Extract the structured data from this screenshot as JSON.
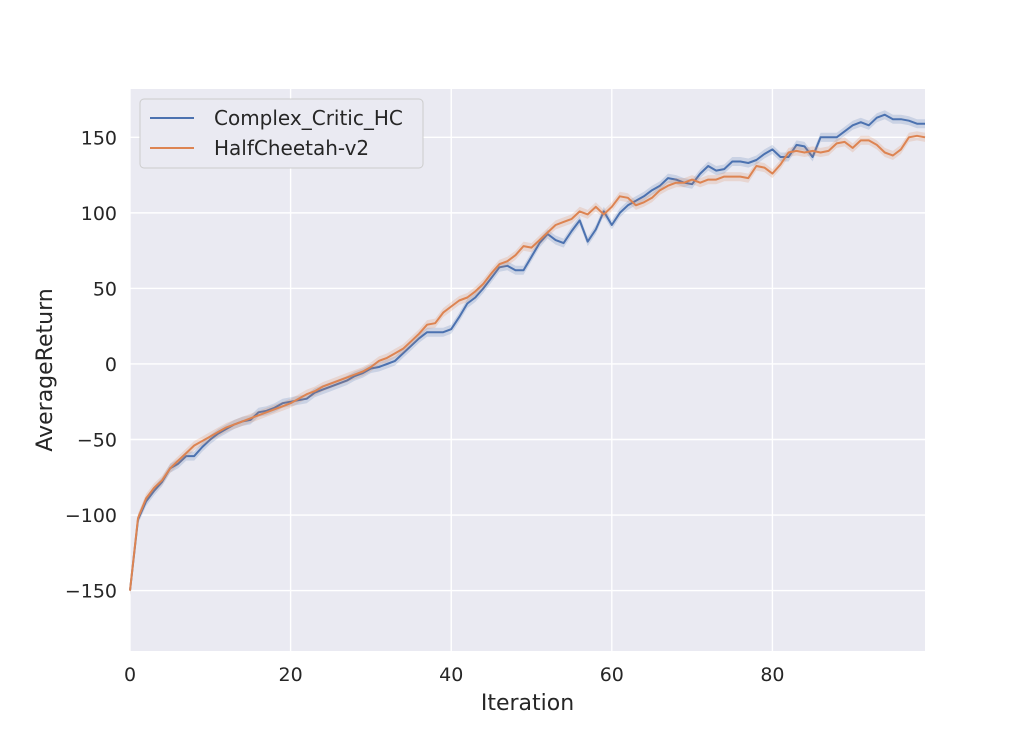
{
  "chart_data": {
    "type": "line",
    "title": "",
    "xlabel": "Iteration",
    "ylabel": "AverageReturn",
    "xlim": [
      0,
      99
    ],
    "ylim": [
      -190,
      182
    ],
    "xticks": [
      0,
      20,
      40,
      60,
      80
    ],
    "yticks": [
      -150,
      -100,
      -50,
      0,
      50,
      100,
      150
    ],
    "ytick_labels": [
      "−150",
      "−100",
      "−50",
      "0",
      "50",
      "100",
      "150"
    ],
    "grid": true,
    "legend_position": "top-left",
    "background": "#eaeaf2",
    "series": [
      {
        "name": "Complex_Critic_HC",
        "color": "#4c72b0",
        "x": [
          0,
          1,
          2,
          3,
          4,
          5,
          6,
          7,
          8,
          9,
          10,
          11,
          12,
          13,
          14,
          15,
          16,
          17,
          18,
          19,
          20,
          21,
          22,
          23,
          24,
          25,
          26,
          27,
          28,
          29,
          30,
          31,
          32,
          33,
          34,
          35,
          36,
          37,
          38,
          39,
          40,
          41,
          42,
          43,
          44,
          45,
          46,
          47,
          48,
          49,
          50,
          51,
          52,
          53,
          54,
          55,
          56,
          57,
          58,
          59,
          60,
          61,
          62,
          63,
          64,
          65,
          66,
          67,
          68,
          69,
          70,
          71,
          72,
          73,
          74,
          75,
          76,
          77,
          78,
          79,
          80,
          81,
          82,
          83,
          84,
          85,
          86,
          87,
          88,
          89,
          90,
          91,
          92,
          93,
          94,
          95,
          96,
          97,
          98,
          99
        ],
        "y": [
          -150,
          -103,
          -91,
          -84,
          -78,
          -69,
          -66,
          -61,
          -61,
          -55,
          -50,
          -46,
          -43,
          -40,
          -38,
          -37,
          -32,
          -31,
          -29,
          -26,
          -25,
          -24,
          -23,
          -19,
          -17,
          -15,
          -13,
          -11,
          -8,
          -6,
          -3,
          -2,
          0,
          2,
          7,
          12,
          17,
          21,
          21,
          21,
          23,
          31,
          40,
          44,
          50,
          57,
          64,
          65,
          62,
          62,
          71,
          80,
          86,
          82,
          80,
          88,
          95,
          81,
          89,
          101,
          92,
          100,
          105,
          108,
          111,
          115,
          118,
          123,
          122,
          120,
          119,
          126,
          131,
          128,
          129,
          134,
          134,
          133,
          135,
          139,
          142,
          137,
          137,
          145,
          144,
          137,
          150,
          150,
          150,
          154,
          158,
          160,
          158,
          163,
          165,
          162,
          162,
          161,
          159,
          159
        ]
      },
      {
        "name": "HalfCheetah-v2",
        "color": "#dd8452",
        "x": [
          0,
          1,
          2,
          3,
          4,
          5,
          6,
          7,
          8,
          9,
          10,
          11,
          12,
          13,
          14,
          15,
          16,
          17,
          18,
          19,
          20,
          21,
          22,
          23,
          24,
          25,
          26,
          27,
          28,
          29,
          30,
          31,
          32,
          33,
          34,
          35,
          36,
          37,
          38,
          39,
          40,
          41,
          42,
          43,
          44,
          45,
          46,
          47,
          48,
          49,
          50,
          51,
          52,
          53,
          54,
          55,
          56,
          57,
          58,
          59,
          60,
          61,
          62,
          63,
          64,
          65,
          66,
          67,
          68,
          69,
          70,
          71,
          72,
          73,
          74,
          75,
          76,
          77,
          78,
          79,
          80,
          81,
          82,
          83,
          84,
          85,
          86,
          87,
          88,
          89,
          90,
          91,
          92,
          93,
          94,
          95,
          96,
          97,
          98,
          99
        ],
        "y": [
          -150,
          -102,
          -89,
          -82,
          -77,
          -69,
          -64,
          -59,
          -54,
          -51,
          -48,
          -45,
          -42,
          -40,
          -38,
          -36,
          -34,
          -32,
          -30,
          -28,
          -26,
          -23,
          -20,
          -18,
          -15,
          -13,
          -11,
          -9,
          -7,
          -5,
          -2,
          2,
          4,
          7,
          10,
          15,
          20,
          26,
          27,
          34,
          38,
          42,
          44,
          48,
          53,
          60,
          66,
          68,
          72,
          78,
          77,
          82,
          87,
          92,
          94,
          96,
          101,
          99,
          104,
          99,
          104,
          111,
          110,
          105,
          107,
          110,
          115,
          118,
          120,
          120,
          122,
          120,
          122,
          122,
          124,
          124,
          124,
          123,
          131,
          130,
          126,
          132,
          140,
          141,
          140,
          141,
          140,
          141,
          146,
          147,
          143,
          148,
          148,
          145,
          140,
          138,
          142,
          150,
          151,
          150
        ]
      }
    ]
  }
}
